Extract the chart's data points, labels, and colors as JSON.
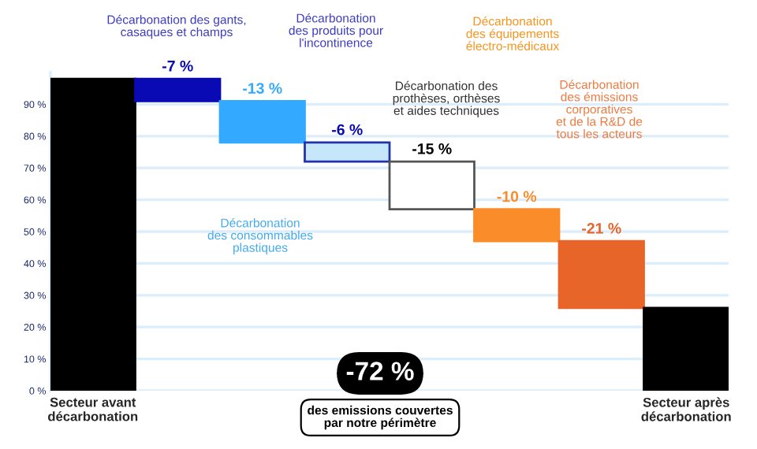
{
  "chart_data": {
    "type": "bar",
    "categories": [
      "Secteur avant\ndécarbonation",
      null,
      null,
      null,
      null,
      null,
      null,
      "Secteur après\ndécarbonation"
    ],
    "values": [
      98,
      -7,
      -13,
      -6,
      -15,
      -10,
      -21,
      26
    ],
    "base": [
      0,
      98,
      91,
      78,
      72,
      57,
      47,
      0
    ],
    "colors": [
      "#000000",
      "#0a0ab4",
      "#33aaff",
      "#c6e6fa",
      "#ffffff",
      "#fb8c2a",
      "#e8652a",
      "#000000"
    ],
    "value_labels": [
      null,
      "-7 %",
      "-13 %",
      "-6 %",
      "-15 %",
      "-10 %",
      "-21 %",
      null
    ],
    "ylim": [
      0,
      100
    ],
    "yticks": [
      {
        "value": 0,
        "label": "0 %"
      },
      {
        "value": 10,
        "label": "10 %"
      },
      {
        "value": 20,
        "label": "20 %"
      },
      {
        "value": 30,
        "label": "30 %"
      },
      {
        "value": 40,
        "label": "40 %"
      },
      {
        "value": 50,
        "label": "50 %"
      },
      {
        "value": 60,
        "label": "60 %"
      },
      {
        "value": 70,
        "label": "70 %"
      },
      {
        "value": 80,
        "label": "80 %"
      },
      {
        "value": 90,
        "label": "90 %"
      }
    ],
    "grid": "y",
    "annotations": [
      "Décarbonation des gants,\ncasaques et champs",
      "Décarbonation\ndes produits pour\nl'incontinence",
      "Décarbonation des\nprothèses, orthèses\net aides techniques",
      "Décarbonation\ndes consommables\nplastiques",
      "Décarbonation\ndes équipements\nélectro-médicaux",
      "Décarbonation\ndes émissions\ncorporatives\net de la R&D de\ntous les acteurs",
      "-72 %",
      "des emissions couvertes\npar notre périmètre"
    ]
  }
}
